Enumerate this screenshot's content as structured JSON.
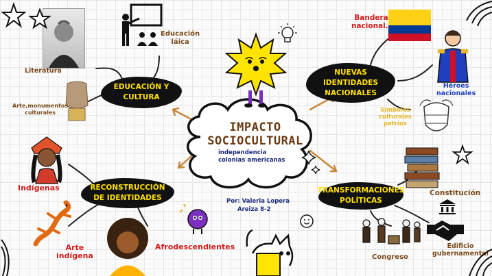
{
  "center": {
    "title_line1": "IMPACTO",
    "title_line2": "SOCIOCULTURAL",
    "subtitle_line1": "independencia",
    "subtitle_line2": "colonias americanas",
    "author_line1": "Por: Valeria Lopera",
    "author_line2": "Areiza  8-2"
  },
  "branches": {
    "education": {
      "line1": "EDUCACIÓN Y",
      "line2": "CULTURA"
    },
    "identities": {
      "line1": "NUEVAS",
      "line2": "IDENTIDADES",
      "line3": "NACIONALES"
    },
    "reconstruction": {
      "line1": "RECONSTRUCCIÓN",
      "line2": "DE IDENTIDADES"
    },
    "transformations": {
      "line1": "TRANSFORMACIONES",
      "line2": "POLÍTICAS"
    }
  },
  "labels": {
    "education_laica": [
      "Educación",
      "láica"
    ],
    "literatura": "Literatura",
    "arte_monumentos": [
      "Arte,monumentos",
      "culturales"
    ],
    "bandera": [
      "Bandera",
      "nacional."
    ],
    "heroes": [
      "Héroes",
      "nacionales"
    ],
    "simbolos": [
      "Simbolos",
      "culturales",
      "patrios"
    ],
    "indigenas": "Indígenas",
    "arte_indigena": [
      "Arte",
      "indígena"
    ],
    "afrodescendientes": "Afrodescendientes",
    "constitucion": "Constitución",
    "congreso": "Congreso",
    "edificio": [
      "Edificio",
      "gubernamental"
    ]
  },
  "colors": {
    "branch_bg": "#111111",
    "branch_text": "#ffe000",
    "label_brown": "#7a4a1a",
    "label_red": "#d11b1b",
    "label_blue": "#1f3fbf",
    "label_gold": "#e7b62a",
    "sun": "#ffe400",
    "flag_yellow": "#fcd116",
    "flag_blue": "#003893",
    "flag_red": "#ce1126"
  }
}
